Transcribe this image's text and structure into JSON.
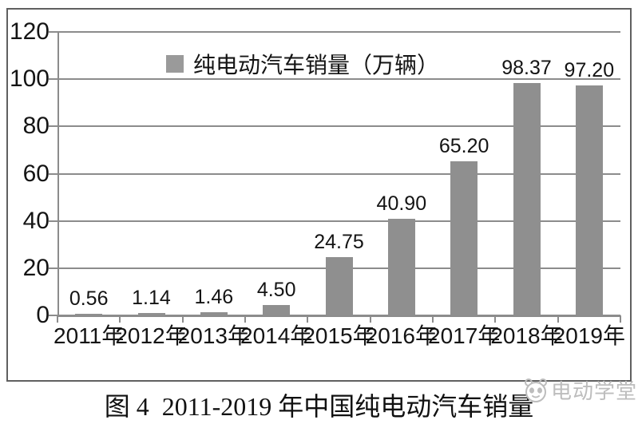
{
  "figure": {
    "caption": "图 4  2011-2019 年中国纯电动汽车销量"
  },
  "watermark": {
    "text": "电动学堂",
    "icon": "panda-face-icon"
  },
  "chart_data": {
    "type": "bar",
    "title": "图 4 2011-2019 年中国纯电动汽车销量",
    "legend": "纯电动汽车销量（万辆）",
    "legend_position": "top-center",
    "categories": [
      "2011年",
      "2012年",
      "2013年",
      "2014年",
      "2015年",
      "2016年",
      "2017年",
      "2018年",
      "2019年"
    ],
    "values": [
      0.56,
      1.14,
      1.46,
      4.5,
      24.75,
      40.9,
      65.2,
      98.37,
      97.2
    ],
    "value_labels": [
      "0.56",
      "1.14",
      "1.46",
      "4.50",
      "24.75",
      "40.90",
      "65.20",
      "98.37",
      "97.20"
    ],
    "xlabel": "",
    "ylabel": "",
    "ylim": [
      0,
      120
    ],
    "yticks": [
      120,
      100,
      80,
      60,
      40,
      20,
      0
    ],
    "grid": true,
    "bar_color": "#8f8f8f",
    "grid_color": "#8c8c8c",
    "text_color": "#141414"
  }
}
